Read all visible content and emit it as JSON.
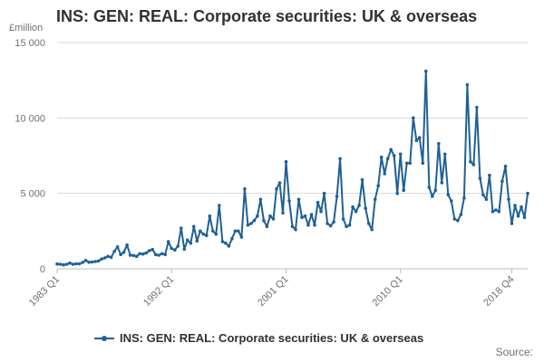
{
  "title": "INS: GEN: REAL: Corporate securities: UK & overseas",
  "source": "Source:",
  "chart_data": {
    "type": "line",
    "title": "INS: GEN: REAL: Corporate securities: UK & overseas",
    "ylabel": "£million",
    "xlabel": "",
    "ylim": [
      0,
      15000
    ],
    "yticks": [
      0,
      5000,
      10000,
      15000
    ],
    "ytick_labels": [
      "0",
      "5 000",
      "10 000",
      "15 000"
    ],
    "xticks": [
      "1983 Q1",
      "1992 Q1",
      "2001 Q1",
      "2010 Q1",
      "2018 Q4"
    ],
    "start_period": "1983 Q1",
    "end_period": "2018 Q4",
    "grid": true,
    "color": "#206095",
    "series": [
      {
        "name": "INS: GEN: REAL: Corporate securities: UK & overseas",
        "values": [
          320,
          300,
          260,
          300,
          380,
          300,
          330,
          330,
          420,
          550,
          440,
          450,
          480,
          520,
          650,
          720,
          820,
          760,
          1150,
          1450,
          950,
          1100,
          1580,
          900,
          880,
          830,
          1000,
          980,
          1050,
          1200,
          1280,
          940,
          900,
          1000,
          950,
          1800,
          1350,
          1250,
          1500,
          2700,
          1300,
          1900,
          1700,
          2800,
          1850,
          2500,
          2300,
          2200,
          3500,
          2500,
          2300,
          4200,
          1800,
          1700,
          1500,
          2000,
          2500,
          2500,
          2100,
          5300,
          2900,
          3000,
          3200,
          3500,
          4600,
          3200,
          2800,
          3500,
          3300,
          5300,
          5700,
          3700,
          7100,
          4500,
          2800,
          2600,
          4600,
          3400,
          3500,
          2900,
          3600,
          2900,
          4400,
          3800,
          5000,
          3000,
          2850,
          3100,
          4800,
          7300,
          3300,
          2800,
          2900,
          4100,
          3800,
          4200,
          5900,
          4000,
          3000,
          2600,
          4600,
          5500,
          7400,
          6300,
          7300,
          7900,
          7500,
          5000,
          7600,
          5200,
          7000,
          7000,
          10000,
          8500,
          8700,
          7000,
          13100,
          5400,
          4800,
          5200,
          8300,
          5700,
          7600,
          4900,
          4500,
          3300,
          3200,
          3600,
          4700,
          12200,
          7100,
          6900,
          10700,
          6000,
          4900,
          4600,
          6200,
          3800,
          3900,
          3800,
          5800,
          6800,
          4600,
          3000,
          4200,
          3500,
          4100,
          3400,
          5000
        ]
      }
    ]
  }
}
